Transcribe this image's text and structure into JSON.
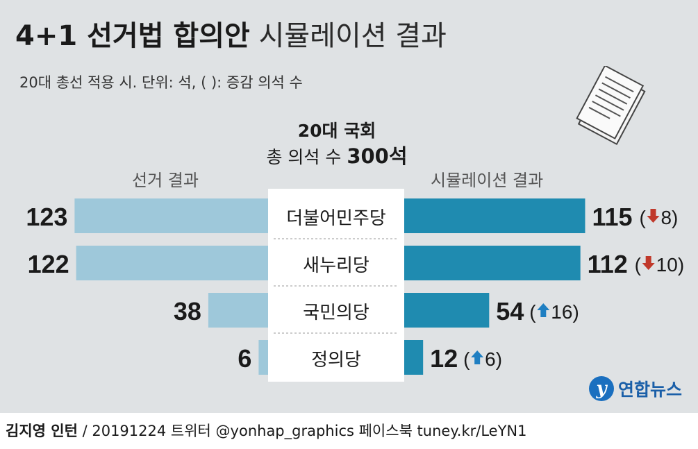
{
  "title": {
    "bold": "4+1 선거법 합의안",
    "light": "시뮬레이션 결과"
  },
  "subtitle": "20대 총선 적용 시.  단위: 석, ( ): 증감 의석 수",
  "center_header": {
    "line1": "20대 국회",
    "line2_prefix": "총 의석 수 ",
    "line2_bold": "300석"
  },
  "column_headers": {
    "left": "선거 결과",
    "right": "시뮬레이션 결과"
  },
  "colors": {
    "left_bar": "#9ec8da",
    "right_bar": "#1f8bb0",
    "down": "#c0392b",
    "up": "#1f7fc2"
  },
  "chart_data": {
    "type": "bar",
    "categories": [
      "더불어민주당",
      "새누리당",
      "국민의당",
      "정의당"
    ],
    "series": [
      {
        "name": "선거 결과",
        "values": [
          123,
          122,
          38,
          6
        ]
      },
      {
        "name": "시뮬레이션 결과",
        "values": [
          115,
          112,
          54,
          12
        ]
      }
    ],
    "changes": [
      {
        "direction": "down",
        "value": "8"
      },
      {
        "direction": "down",
        "value": "10"
      },
      {
        "direction": "up",
        "value": "16"
      },
      {
        "direction": "up",
        "value": "6"
      }
    ]
  },
  "logo": {
    "mark": "y",
    "text": "연합뉴스"
  },
  "footer": {
    "author": "김지영 인턴",
    "rest": " / 20191224 트위터 @yonhap_graphics  페이스북 tuney.kr/LeYN1"
  }
}
